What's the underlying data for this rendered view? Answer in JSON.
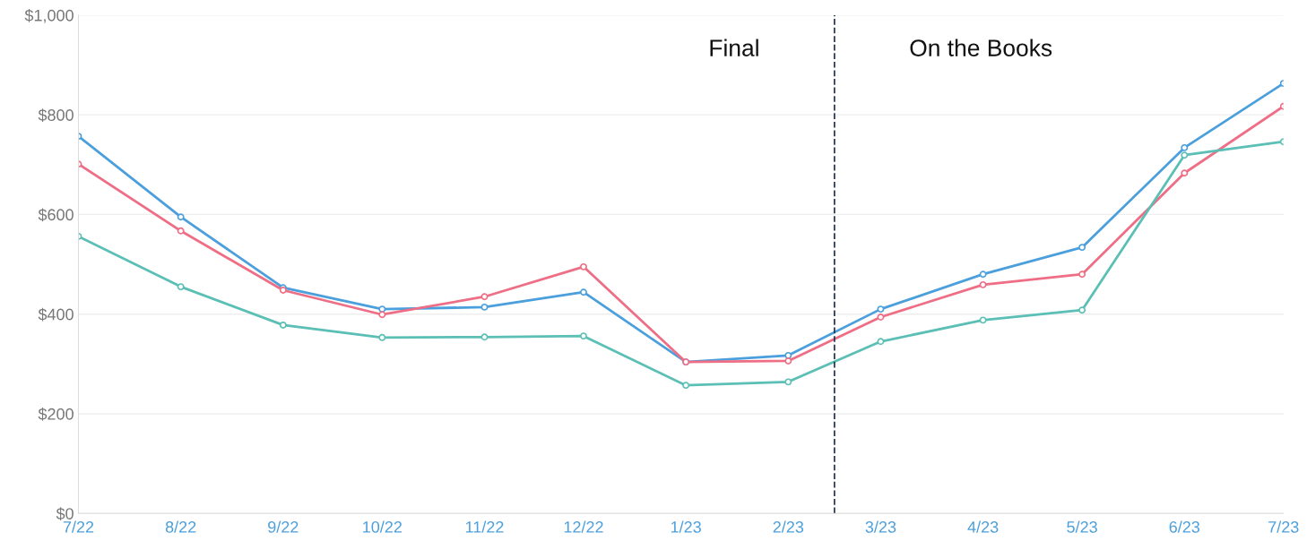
{
  "chart_data": {
    "type": "line",
    "x": [
      "2022-07",
      "2022-08",
      "2022-09",
      "2022-10",
      "2022-11",
      "2022-12",
      "2023-01",
      "2023-02",
      "2023-03",
      "2023-04",
      "2023-05",
      "2023-06",
      "2023-07"
    ],
    "series": [
      {
        "color": "#4a9fdc",
        "values": [
          757,
          595,
          453,
          410,
          414,
          444,
          304,
          317,
          410,
          480,
          534,
          734,
          863
        ]
      },
      {
        "color": "#ee6e85",
        "values": [
          701,
          567,
          448,
          399,
          435,
          495,
          304,
          306,
          394,
          459,
          480,
          683,
          817
        ]
      },
      {
        "color": "#5bbfb5",
        "values": [
          556,
          455,
          378,
          353,
          354,
          356,
          257,
          264,
          345,
          388,
          408,
          719,
          746
        ]
      }
    ],
    "xlim": [
      "2022-07",
      "2023-07"
    ],
    "xticks": [
      {
        "value": "2022-07",
        "label": "7/22"
      },
      {
        "value": "2022-08",
        "label": "8/22"
      },
      {
        "value": "2022-09",
        "label": "9/22"
      },
      {
        "value": "2022-10",
        "label": "10/22"
      },
      {
        "value": "2022-11",
        "label": "11/22"
      },
      {
        "value": "2022-12",
        "label": "12/22"
      },
      {
        "value": "2023-01",
        "label": "1/23"
      },
      {
        "value": "2023-02",
        "label": "2/23"
      },
      {
        "value": "2023-03",
        "label": "3/23"
      },
      {
        "value": "2023-04",
        "label": "4/23"
      },
      {
        "value": "2023-05",
        "label": "5/23"
      },
      {
        "value": "2023-06",
        "label": "6/23"
      },
      {
        "value": "2023-07",
        "label": "7/23"
      }
    ],
    "ylim": [
      0,
      1000
    ],
    "yticks": [
      {
        "value": 0,
        "label": "$0"
      },
      {
        "value": 200,
        "label": "$200"
      },
      {
        "value": 400,
        "label": "$400"
      },
      {
        "value": 600,
        "label": "$600"
      },
      {
        "value": 800,
        "label": "$800"
      },
      {
        "value": 1000,
        "label": "$1,000"
      }
    ],
    "ref_lines": [
      {
        "axis": "x",
        "value": "2023-02-15",
        "color": "#2b3a55",
        "line_style": "dashed"
      }
    ],
    "annotations": [
      "Final",
      "On the Books"
    ],
    "grid": "y",
    "marker": "circle",
    "line_style": "solid"
  }
}
